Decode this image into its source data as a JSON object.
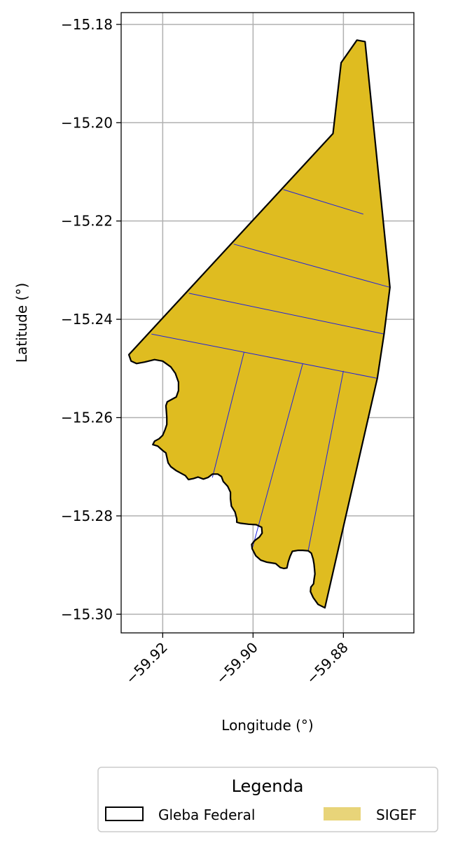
{
  "chart_data": {
    "type": "map",
    "xlabel": "Longitude (°)",
    "ylabel": "Latitude (°)",
    "xlim": [
      -59.9292,
      -59.8644
    ],
    "ylim": [
      -15.3038,
      -15.1776
    ],
    "grid": true,
    "x_ticks": [
      {
        "value": -59.92,
        "label": "−59.92"
      },
      {
        "value": -59.9,
        "label": "−59.90"
      },
      {
        "value": -59.88,
        "label": "−59.88"
      }
    ],
    "y_ticks": [
      {
        "value": -15.18,
        "label": "−15.18"
      },
      {
        "value": -15.2,
        "label": "−15.20"
      },
      {
        "value": -15.22,
        "label": "−15.22"
      },
      {
        "value": -15.24,
        "label": "−15.24"
      },
      {
        "value": -15.26,
        "label": "−15.26"
      },
      {
        "value": -15.28,
        "label": "−15.28"
      },
      {
        "value": -15.3,
        "label": "−15.30"
      }
    ],
    "layers": {
      "gleba_federal": {
        "name": "Gleba Federal",
        "edge_color": "#000000",
        "fill": "none",
        "boundary": [
          [
            -59.8805,
            -15.1878
          ],
          [
            -59.877,
            -15.1832
          ],
          [
            -59.8752,
            -15.1835
          ],
          [
            -59.8697,
            -15.2335
          ],
          [
            -59.871,
            -15.243
          ],
          [
            -59.8725,
            -15.252
          ],
          [
            -59.8841,
            -15.2987
          ],
          [
            -59.8856,
            -15.298
          ],
          [
            -59.8867,
            -15.2966
          ],
          [
            -59.8873,
            -15.2954
          ],
          [
            -59.8872,
            -15.2945
          ],
          [
            -59.8866,
            -15.2938
          ],
          [
            -59.8865,
            -15.293
          ],
          [
            -59.8863,
            -15.2918
          ],
          [
            -59.8864,
            -15.2908
          ],
          [
            -59.8865,
            -15.2898
          ],
          [
            -59.8867,
            -15.2888
          ],
          [
            -59.8871,
            -15.2876
          ],
          [
            -59.8878,
            -15.2871
          ],
          [
            -59.889,
            -15.287
          ],
          [
            -59.89,
            -15.287
          ],
          [
            -59.8913,
            -15.2872
          ],
          [
            -59.8918,
            -15.2882
          ],
          [
            -59.8922,
            -15.2893
          ],
          [
            -59.8925,
            -15.2906
          ],
          [
            -59.8932,
            -15.2907
          ],
          [
            -59.894,
            -15.2905
          ],
          [
            -59.895,
            -15.2897
          ],
          [
            -59.897,
            -15.2894
          ],
          [
            -59.8983,
            -15.289
          ],
          [
            -59.8994,
            -15.2881
          ],
          [
            -59.9002,
            -15.2867
          ],
          [
            -59.9003,
            -15.2858
          ],
          [
            -59.8996,
            -15.285
          ],
          [
            -59.8986,
            -15.2843
          ],
          [
            -59.898,
            -15.2835
          ],
          [
            -59.8981,
            -15.2823
          ],
          [
            -59.8993,
            -15.2818
          ],
          [
            -59.901,
            -15.2817
          ],
          [
            -59.9028,
            -15.2815
          ],
          [
            -59.9036,
            -15.2813
          ],
          [
            -59.9036,
            -15.2806
          ],
          [
            -59.904,
            -15.2792
          ],
          [
            -59.9048,
            -15.278
          ],
          [
            -59.905,
            -15.2765
          ],
          [
            -59.905,
            -15.2752
          ],
          [
            -59.9056,
            -15.274
          ],
          [
            -59.9066,
            -15.273
          ],
          [
            -59.907,
            -15.272
          ],
          [
            -59.9078,
            -15.2715
          ],
          [
            -59.909,
            -15.2715
          ],
          [
            -59.91,
            -15.2722
          ],
          [
            -59.911,
            -15.2725
          ],
          [
            -59.9122,
            -15.2721
          ],
          [
            -59.9132,
            -15.2724
          ],
          [
            -59.9143,
            -15.2726
          ],
          [
            -59.915,
            -15.2718
          ],
          [
            -59.916,
            -15.2713
          ],
          [
            -59.917,
            -15.2708
          ],
          [
            -59.9182,
            -15.27
          ],
          [
            -59.9188,
            -15.2692
          ],
          [
            -59.919,
            -15.2684
          ],
          [
            -59.9193,
            -15.2672
          ],
          [
            -59.92,
            -15.2667
          ],
          [
            -59.9211,
            -15.2658
          ],
          [
            -59.9222,
            -15.2655
          ],
          [
            -59.9218,
            -15.2648
          ],
          [
            -59.9208,
            -15.2643
          ],
          [
            -59.92,
            -15.2636
          ],
          [
            -59.9195,
            -15.2625
          ],
          [
            -59.9191,
            -15.2614
          ],
          [
            -59.9191,
            -15.26
          ],
          [
            -59.9192,
            -15.2586
          ],
          [
            -59.9193,
            -15.2576
          ],
          [
            -59.919,
            -15.2568
          ],
          [
            -59.918,
            -15.2563
          ],
          [
            -59.917,
            -15.2558
          ],
          [
            -59.9165,
            -15.2545
          ],
          [
            -59.9165,
            -15.2528
          ],
          [
            -59.9172,
            -15.251
          ],
          [
            -59.9182,
            -15.2497
          ],
          [
            -59.92,
            -15.2485
          ],
          [
            -59.9218,
            -15.2482
          ],
          [
            -59.924,
            -15.2487
          ],
          [
            -59.9258,
            -15.249
          ],
          [
            -59.927,
            -15.2485
          ],
          [
            -59.9275,
            -15.2472
          ],
          [
            -59.8823,
            -15.2022
          ]
        ]
      },
      "sigef": {
        "name": "SIGEF",
        "fill_color": "#dfbc20",
        "divider_color": "#1e22e0",
        "parcel_dividers": [
          [
            [
              -59.8933,
              -15.2136
            ],
            [
              -59.8756,
              -15.2186
            ]
          ],
          [
            [
              -59.9043,
              -15.2247
            ],
            [
              -59.8697,
              -15.2335
            ]
          ],
          [
            [
              -59.9142,
              -15.2347
            ],
            [
              -59.871,
              -15.243
            ]
          ],
          [
            [
              -59.9225,
              -15.243
            ],
            [
              -59.8725,
              -15.252
            ]
          ],
          [
            [
              -59.902,
              -15.2467
            ],
            [
              -59.909,
              -15.2722
            ]
          ],
          [
            [
              -59.889,
              -15.249
            ],
            [
              -59.9002,
              -15.2867
            ]
          ],
          [
            [
              -59.88,
              -15.2505
            ],
            [
              -59.8878,
              -15.2871
            ]
          ]
        ]
      }
    },
    "legend": {
      "title": "Legenda",
      "placement": "bottom-center",
      "entries": [
        {
          "label": "Gleba Federal",
          "style": "outline",
          "color": "#000000"
        },
        {
          "label": "SIGEF",
          "style": "fill",
          "color": "#e8d479"
        }
      ]
    }
  }
}
